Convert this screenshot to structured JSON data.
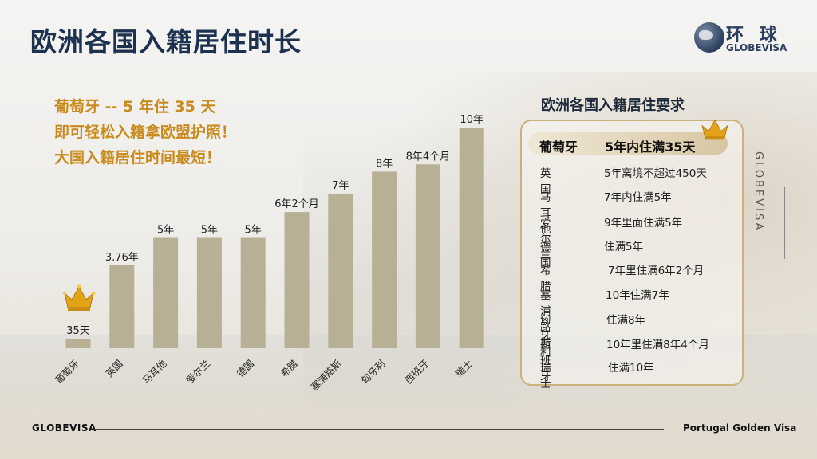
{
  "title": "欧洲各国入籍居住时长",
  "logo": {
    "cn": "环 球",
    "en": "GLOBEVISA"
  },
  "promo": {
    "line1": "葡萄牙 -- 5 年住 35 天",
    "line2": "即可轻松入籍拿欧盟护照！",
    "line3": "大国入籍居住时间最短！"
  },
  "side_label": "GLOBEVISA",
  "colors": {
    "bar": "#b8b095",
    "promo": "#c98b1e",
    "title": "#1d3150",
    "panel_border": "#c9b27c",
    "crown": "#e2a317"
  },
  "chart_data": {
    "type": "bar",
    "categories": [
      "葡萄牙",
      "英国",
      "马耳他",
      "爱尔兰",
      "德国",
      "希腊",
      "塞浦路斯",
      "匈牙利",
      "西班牙",
      "瑞士"
    ],
    "values": [
      0.096,
      3.76,
      5,
      5,
      5,
      6.17,
      7,
      8,
      8.33,
      10
    ],
    "data_labels": [
      "35天",
      "3.76年",
      "5年",
      "5年",
      "5年",
      "6年2个月",
      "7年",
      "8年",
      "8年4个月",
      "10年"
    ],
    "unit": "年",
    "ylim": [
      0,
      10
    ],
    "grid": false,
    "legend": "none",
    "title": "",
    "xlabel": "",
    "ylabel": ""
  },
  "requirements": {
    "title": "欧洲各国入籍居住要求",
    "header": {
      "country": "葡萄牙",
      "requirement": "5年内住满35天"
    },
    "rows": [
      {
        "country": "英国",
        "requirement": "5年离境不超过450天"
      },
      {
        "country": "马耳他",
        "requirement": "7年内住满5年"
      },
      {
        "country": "爱尔兰",
        "requirement": "9年里面住满5年"
      },
      {
        "country": "德国",
        "requirement": "住满5年"
      },
      {
        "country": "希腊",
        "requirement": "7年里住满6年2个月"
      },
      {
        "country": "塞浦路斯",
        "requirement": "10年住满7年"
      },
      {
        "country": "匈牙利",
        "requirement": "住满8年"
      },
      {
        "country": "西班牙",
        "requirement": "10年里住满8年4个月"
      },
      {
        "country": "瑞士",
        "requirement": "住满10年"
      }
    ]
  },
  "footer": {
    "left": "GLOBEVISA",
    "right": "Portugal Golden Visa"
  }
}
